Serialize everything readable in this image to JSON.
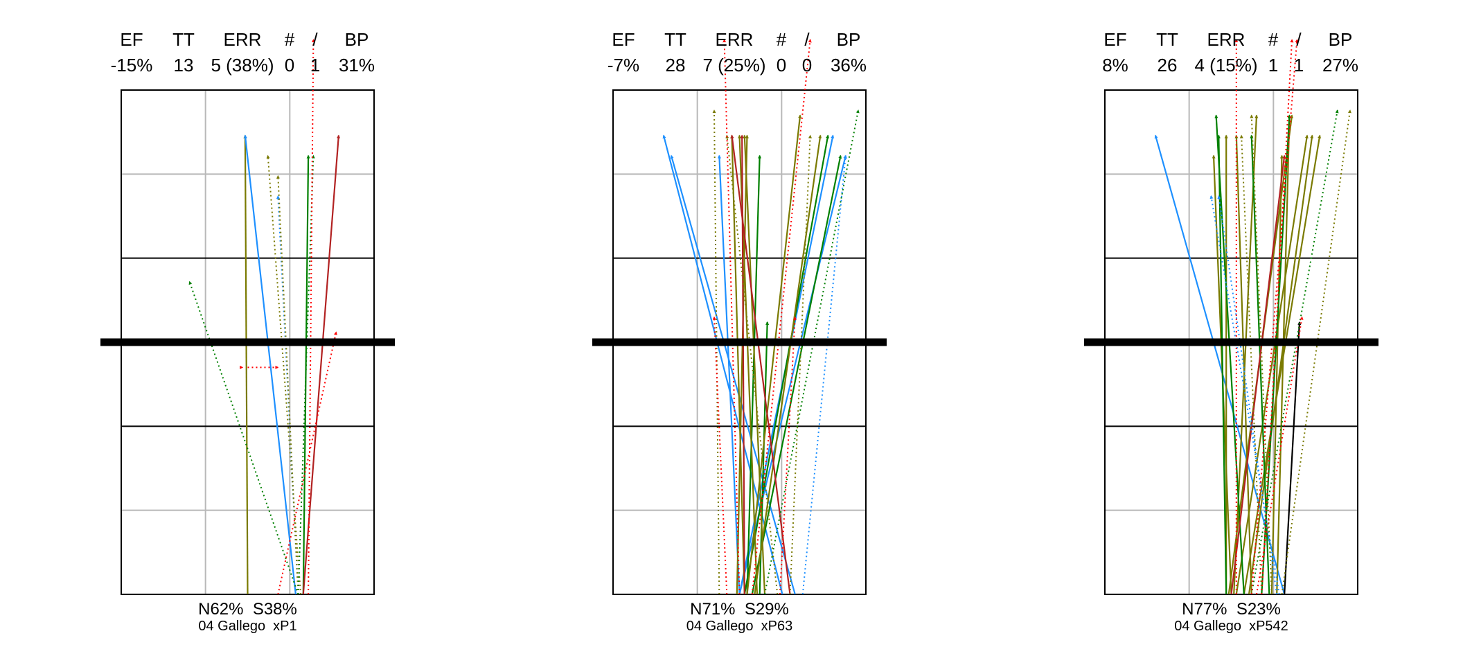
{
  "chart_data": [
    {
      "type": "rally-trajectories",
      "stats_headers": [
        "EF",
        "TT",
        "ERR",
        "#",
        "/",
        "BP"
      ],
      "stats_values": [
        "-15%",
        "13",
        "5 (38%)",
        "0",
        "1",
        "31%"
      ],
      "footer": "N62%  S38%",
      "subtitle": "04 Gallego  xP1",
      "grid": true,
      "net_line": true,
      "trajectories": [
        {
          "from": [
            0.5,
            0.0
          ],
          "to": [
            0.49,
            0.91
          ],
          "color": "#7a7a00",
          "style": "solid"
        },
        {
          "from": [
            0.69,
            0.0
          ],
          "to": [
            0.49,
            0.91
          ],
          "color": "#1e90ff",
          "style": "solid"
        },
        {
          "from": [
            0.72,
            0.0
          ],
          "to": [
            0.74,
            0.87
          ],
          "color": "#008000",
          "style": "solid"
        },
        {
          "from": [
            0.72,
            0.0
          ],
          "to": [
            0.86,
            0.91
          ],
          "color": "#b22222",
          "style": "solid"
        },
        {
          "from": [
            0.62,
            0.0
          ],
          "to": [
            0.85,
            0.52
          ],
          "color": "#ff0000",
          "style": "dotted"
        },
        {
          "from": [
            0.5,
            0.45
          ],
          "to": [
            0.62,
            0.45
          ],
          "color": "#ff0000",
          "style": "dotted"
        },
        {
          "from": [
            0.48,
            0.45
          ],
          "to": [
            0.48,
            0.45
          ],
          "color": "#ff0000",
          "style": "dotted"
        },
        {
          "from": [
            0.71,
            0.0
          ],
          "to": [
            0.58,
            0.87
          ],
          "color": "#7a7a00",
          "style": "dotted"
        },
        {
          "from": [
            0.7,
            0.0
          ],
          "to": [
            0.62,
            0.79
          ],
          "color": "#1e90ff",
          "style": "dotted"
        },
        {
          "from": [
            0.7,
            0.0
          ],
          "to": [
            0.27,
            0.62
          ],
          "color": "#008000",
          "style": "dotted"
        },
        {
          "from": [
            0.7,
            0.0
          ],
          "to": [
            0.62,
            0.83
          ],
          "color": "#7a7a00",
          "style": "dotted"
        },
        {
          "from": [
            0.7,
            0.0
          ],
          "to": [
            0.76,
            0.87
          ],
          "color": "#008000",
          "style": "dotted"
        },
        {
          "from": [
            0.74,
            0.0
          ],
          "to": [
            0.76,
            1.1
          ],
          "color": "#ff0000",
          "style": "dotted"
        }
      ]
    },
    {
      "type": "rally-trajectories",
      "stats_headers": [
        "EF",
        "TT",
        "ERR",
        "#",
        "/",
        "BP"
      ],
      "stats_values": [
        "-7%",
        "28",
        "7 (25%)",
        "0",
        "0",
        "36%"
      ],
      "footer": "N71%  S29%",
      "subtitle": "04 Gallego  xP63",
      "grid": true,
      "net_line": true,
      "trajectories": [
        {
          "from": [
            0.67,
            0.0
          ],
          "to": [
            0.2,
            0.91
          ],
          "color": "#1e90ff",
          "style": "solid"
        },
        {
          "from": [
            0.72,
            0.0
          ],
          "to": [
            0.23,
            0.87
          ],
          "color": "#1e90ff",
          "style": "solid"
        },
        {
          "from": [
            0.5,
            0.0
          ],
          "to": [
            0.42,
            0.87
          ],
          "color": "#1e90ff",
          "style": "solid"
        },
        {
          "from": [
            0.5,
            0.0
          ],
          "to": [
            0.87,
            0.91
          ],
          "color": "#1e90ff",
          "style": "solid"
        },
        {
          "from": [
            0.5,
            0.0
          ],
          "to": [
            0.92,
            0.87
          ],
          "color": "#1e90ff",
          "style": "solid"
        },
        {
          "from": [
            0.52,
            0.0
          ],
          "to": [
            0.85,
            0.91
          ],
          "color": "#008000",
          "style": "solid"
        },
        {
          "from": [
            0.55,
            0.0
          ],
          "to": [
            0.9,
            0.87
          ],
          "color": "#008000",
          "style": "solid"
        },
        {
          "from": [
            0.53,
            0.0
          ],
          "to": [
            0.58,
            0.87
          ],
          "color": "#008000",
          "style": "solid"
        },
        {
          "from": [
            0.58,
            0.0
          ],
          "to": [
            0.61,
            0.54
          ],
          "color": "#008000",
          "style": "solid"
        },
        {
          "from": [
            0.53,
            0.0
          ],
          "to": [
            0.74,
            0.95
          ],
          "color": "#7a7a00",
          "style": "solid"
        },
        {
          "from": [
            0.56,
            0.0
          ],
          "to": [
            0.82,
            0.91
          ],
          "color": "#7a7a00",
          "style": "solid"
        },
        {
          "from": [
            0.6,
            0.0
          ],
          "to": [
            0.52,
            0.91
          ],
          "color": "#7a7a00",
          "style": "solid"
        },
        {
          "from": [
            0.52,
            0.0
          ],
          "to": [
            0.47,
            0.91
          ],
          "color": "#7a7a00",
          "style": "solid"
        },
        {
          "from": [
            0.57,
            0.0
          ],
          "to": [
            0.5,
            0.91
          ],
          "color": "#7a7a00",
          "style": "solid"
        },
        {
          "from": [
            0.49,
            0.0
          ],
          "to": [
            0.53,
            0.91
          ],
          "color": "#7a7a00",
          "style": "solid"
        },
        {
          "from": [
            0.52,
            0.0
          ],
          "to": [
            0.51,
            0.91
          ],
          "color": "#b22222",
          "style": "solid"
        },
        {
          "from": [
            0.7,
            0.0
          ],
          "to": [
            0.47,
            0.91
          ],
          "color": "#b22222",
          "style": "solid"
        },
        {
          "from": [
            0.6,
            0.0
          ],
          "to": [
            0.97,
            0.96
          ],
          "color": "#008000",
          "style": "dotted"
        },
        {
          "from": [
            0.75,
            0.0
          ],
          "to": [
            0.92,
            0.87
          ],
          "color": "#1e90ff",
          "style": "dotted"
        },
        {
          "from": [
            0.42,
            0.0
          ],
          "to": [
            0.4,
            0.96
          ],
          "color": "#7a7a00",
          "style": "dotted"
        },
        {
          "from": [
            0.65,
            0.0
          ],
          "to": [
            0.45,
            0.91
          ],
          "color": "#7a7a00",
          "style": "dotted"
        },
        {
          "from": [
            0.7,
            0.0
          ],
          "to": [
            0.78,
            0.91
          ],
          "color": "#7a7a00",
          "style": "dotted"
        },
        {
          "from": [
            0.5,
            0.0
          ],
          "to": [
            0.44,
            1.1
          ],
          "color": "#ff0000",
          "style": "dotted"
        },
        {
          "from": [
            0.55,
            0.0
          ],
          "to": [
            0.78,
            1.1
          ],
          "color": "#ff0000",
          "style": "dotted"
        },
        {
          "from": [
            0.45,
            0.0
          ],
          "to": [
            0.4,
            0.55
          ],
          "color": "#ff0000",
          "style": "dotted"
        },
        {
          "from": [
            0.66,
            0.0
          ],
          "to": [
            0.72,
            0.55
          ],
          "color": "#ff0000",
          "style": "dotted"
        }
      ]
    },
    {
      "type": "rally-trajectories",
      "stats_headers": [
        "EF",
        "TT",
        "ERR",
        "#",
        "/",
        "BP"
      ],
      "stats_values": [
        "8%",
        "26",
        "4 (15%)",
        "1",
        "1",
        "27%"
      ],
      "footer": "N77%  S23%",
      "subtitle": "04 Gallego  xP542",
      "grid": true,
      "net_line": true,
      "trajectories": [
        {
          "from": [
            0.71,
            0.0
          ],
          "to": [
            0.2,
            0.91
          ],
          "color": "#1e90ff",
          "style": "solid"
        },
        {
          "from": [
            0.66,
            0.0
          ],
          "to": [
            0.7,
            0.87
          ],
          "color": "#7a7a00",
          "style": "solid"
        },
        {
          "from": [
            0.5,
            0.0
          ],
          "to": [
            0.43,
            0.87
          ],
          "color": "#7a7a00",
          "style": "solid"
        },
        {
          "from": [
            0.48,
            0.0
          ],
          "to": [
            0.48,
            0.91
          ],
          "color": "#7a7a00",
          "style": "solid"
        },
        {
          "from": [
            0.58,
            0.0
          ],
          "to": [
            0.52,
            0.91
          ],
          "color": "#7a7a00",
          "style": "solid"
        },
        {
          "from": [
            0.51,
            0.0
          ],
          "to": [
            0.6,
            0.95
          ],
          "color": "#7a7a00",
          "style": "solid"
        },
        {
          "from": [
            0.68,
            0.0
          ],
          "to": [
            0.73,
            0.95
          ],
          "color": "#7a7a00",
          "style": "solid"
        },
        {
          "from": [
            0.52,
            0.0
          ],
          "to": [
            0.8,
            0.91
          ],
          "color": "#7a7a00",
          "style": "solid"
        },
        {
          "from": [
            0.55,
            0.0
          ],
          "to": [
            0.85,
            0.91
          ],
          "color": "#7a7a00",
          "style": "solid"
        },
        {
          "from": [
            0.57,
            0.0
          ],
          "to": [
            0.82,
            0.91
          ],
          "color": "#7a7a00",
          "style": "solid"
        },
        {
          "from": [
            0.49,
            0.0
          ],
          "to": [
            0.74,
            0.95
          ],
          "color": "#7a7a00",
          "style": "solid"
        },
        {
          "from": [
            0.48,
            0.0
          ],
          "to": [
            0.45,
            0.91
          ],
          "color": "#008000",
          "style": "solid"
        },
        {
          "from": [
            0.55,
            0.0
          ],
          "to": [
            0.44,
            0.95
          ],
          "color": "#008000",
          "style": "solid"
        },
        {
          "from": [
            0.62,
            0.0
          ],
          "to": [
            0.73,
            0.95
          ],
          "color": "#008000",
          "style": "solid"
        },
        {
          "from": [
            0.65,
            0.0
          ],
          "to": [
            0.58,
            0.91
          ],
          "color": "#008000",
          "style": "solid"
        },
        {
          "from": [
            0.5,
            0.0
          ],
          "to": [
            0.71,
            0.87
          ],
          "color": "#b22222",
          "style": "solid"
        },
        {
          "from": [
            0.71,
            0.0
          ],
          "to": [
            0.77,
            0.54
          ],
          "color": "#000000",
          "style": "solid"
        },
        {
          "from": [
            0.69,
            0.0
          ],
          "to": [
            0.42,
            0.79
          ],
          "color": "#1e90ff",
          "style": "dotted"
        },
        {
          "from": [
            0.68,
            0.0
          ],
          "to": [
            0.45,
            0.79
          ],
          "color": "#1e90ff",
          "style": "dotted"
        },
        {
          "from": [
            0.58,
            0.0
          ],
          "to": [
            0.92,
            0.96
          ],
          "color": "#008000",
          "style": "dotted"
        },
        {
          "from": [
            0.7,
            0.0
          ],
          "to": [
            0.97,
            0.96
          ],
          "color": "#7a7a00",
          "style": "dotted"
        },
        {
          "from": [
            0.62,
            0.0
          ],
          "to": [
            0.54,
            0.91
          ],
          "color": "#7a7a00",
          "style": "dotted"
        },
        {
          "from": [
            0.66,
            0.0
          ],
          "to": [
            0.58,
            0.95
          ],
          "color": "#7a7a00",
          "style": "dotted"
        },
        {
          "from": [
            0.52,
            0.0
          ],
          "to": [
            0.52,
            1.1
          ],
          "color": "#ff0000",
          "style": "dotted"
        },
        {
          "from": [
            0.58,
            0.0
          ],
          "to": [
            0.76,
            1.1
          ],
          "color": "#ff0000",
          "style": "dotted"
        },
        {
          "from": [
            0.62,
            0.0
          ],
          "to": [
            0.74,
            1.1
          ],
          "color": "#ff0000",
          "style": "dotted"
        },
        {
          "from": [
            0.6,
            0.0
          ],
          "to": [
            0.78,
            0.55
          ],
          "color": "#ff0000",
          "style": "dotted"
        }
      ]
    }
  ]
}
